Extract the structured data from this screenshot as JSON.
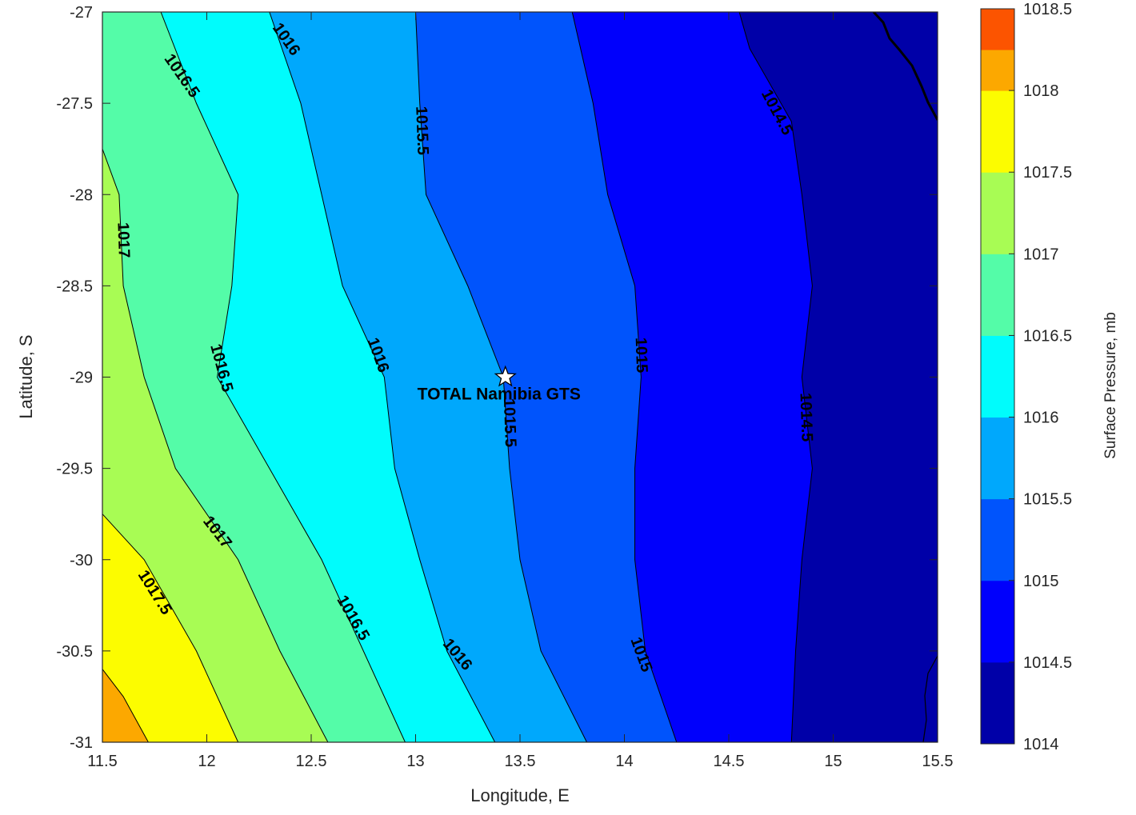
{
  "chart_data": {
    "type": "contour",
    "xlabel": "Longitude, E",
    "ylabel": "Latitude, S",
    "xlim": [
      11.5,
      15.5
    ],
    "ylim": [
      -31,
      -27
    ],
    "x_ticks": [
      "11.5",
      "12",
      "12.5",
      "13",
      "13.5",
      "14",
      "14.5",
      "15",
      "15.5"
    ],
    "y_ticks": [
      "-27",
      "-27.5",
      "-28",
      "-28.5",
      "-29",
      "-29.5",
      "-30",
      "-30.5",
      "-31"
    ],
    "colorbar": {
      "label": "Surface Pressure, mb",
      "range": [
        1014,
        1018.5
      ],
      "ticks": [
        "1014",
        "1014.5",
        "1015",
        "1015.5",
        "1016",
        "1016.5",
        "1017",
        "1017.5",
        "1018",
        "1018.5"
      ],
      "levels": [
        {
          "from": 1014.0,
          "to": 1014.25,
          "color": "#0000a8"
        },
        {
          "from": 1014.25,
          "to": 1014.5,
          "color": "#0000a8"
        },
        {
          "from": 1014.5,
          "to": 1014.75,
          "color": "#0000fc"
        },
        {
          "from": 1014.75,
          "to": 1015.0,
          "color": "#0000fc"
        },
        {
          "from": 1015.0,
          "to": 1015.25,
          "color": "#0054fc"
        },
        {
          "from": 1015.25,
          "to": 1015.5,
          "color": "#0054fc"
        },
        {
          "from": 1015.5,
          "to": 1015.75,
          "color": "#00a8fc"
        },
        {
          "from": 1015.75,
          "to": 1016.0,
          "color": "#00a8fc"
        },
        {
          "from": 1016.0,
          "to": 1016.25,
          "color": "#00fcfc"
        },
        {
          "from": 1016.25,
          "to": 1016.5,
          "color": "#00fcfc"
        },
        {
          "from": 1016.5,
          "to": 1016.75,
          "color": "#54fca8"
        },
        {
          "from": 1016.75,
          "to": 1017.0,
          "color": "#54fca8"
        },
        {
          "from": 1017.0,
          "to": 1017.25,
          "color": "#a8fc54"
        },
        {
          "from": 1017.25,
          "to": 1017.5,
          "color": "#a8fc54"
        },
        {
          "from": 1017.5,
          "to": 1017.75,
          "color": "#fcfc00"
        },
        {
          "from": 1017.75,
          "to": 1018.0,
          "color": "#fcfc00"
        },
        {
          "from": 1018.0,
          "to": 1018.25,
          "color": "#fca800"
        },
        {
          "from": 1018.25,
          "to": 1018.5,
          "color": "#fc5400"
        }
      ]
    },
    "contour_lines": [
      {
        "level": "1014.5",
        "points": [
          [
            14.55,
            -27
          ],
          [
            14.6,
            -27.2
          ],
          [
            14.7,
            -27.4
          ],
          [
            14.8,
            -27.6
          ],
          [
            14.85,
            -28
          ],
          [
            14.9,
            -28.5
          ],
          [
            14.85,
            -29
          ],
          [
            14.9,
            -29.5
          ],
          [
            14.85,
            -30
          ],
          [
            14.82,
            -30.5
          ],
          [
            14.8,
            -31
          ]
        ]
      },
      {
        "level": "1015",
        "points": [
          [
            13.75,
            -27
          ],
          [
            13.85,
            -27.5
          ],
          [
            13.92,
            -28
          ],
          [
            14.05,
            -28.5
          ],
          [
            14.08,
            -29
          ],
          [
            14.05,
            -29.5
          ],
          [
            14.05,
            -30
          ],
          [
            14.1,
            -30.5
          ],
          [
            14.25,
            -31
          ]
        ]
      },
      {
        "level": "1015.5",
        "points": [
          [
            13.0,
            -27
          ],
          [
            13.02,
            -27.5
          ],
          [
            13.05,
            -28
          ],
          [
            13.25,
            -28.5
          ],
          [
            13.42,
            -29
          ],
          [
            13.45,
            -29.5
          ],
          [
            13.5,
            -30
          ],
          [
            13.6,
            -30.5
          ],
          [
            13.82,
            -31
          ]
        ]
      },
      {
        "level": "1016",
        "points": [
          [
            12.3,
            -27
          ],
          [
            12.45,
            -27.5
          ],
          [
            12.55,
            -28
          ],
          [
            12.65,
            -28.5
          ],
          [
            12.85,
            -29
          ],
          [
            12.9,
            -29.5
          ],
          [
            13.02,
            -30
          ],
          [
            13.15,
            -30.5
          ],
          [
            13.38,
            -31
          ]
        ]
      },
      {
        "level": "1016.5",
        "points": [
          [
            11.78,
            -27
          ],
          [
            11.95,
            -27.5
          ],
          [
            12.15,
            -28
          ],
          [
            12.12,
            -28.5
          ],
          [
            12.05,
            -29
          ],
          [
            12.3,
            -29.5
          ],
          [
            12.55,
            -30
          ],
          [
            12.75,
            -30.5
          ],
          [
            12.95,
            -31
          ]
        ]
      },
      {
        "level": "1017",
        "points": [
          [
            11.5,
            -27.75
          ],
          [
            11.58,
            -28
          ],
          [
            11.6,
            -28.5
          ],
          [
            11.7,
            -29
          ],
          [
            11.85,
            -29.5
          ],
          [
            12.15,
            -30
          ],
          [
            12.35,
            -30.5
          ],
          [
            12.58,
            -31
          ]
        ]
      },
      {
        "level": "1017.5",
        "points": [
          [
            11.5,
            -29.75
          ],
          [
            11.7,
            -30
          ],
          [
            11.95,
            -30.5
          ],
          [
            12.15,
            -31
          ]
        ]
      },
      {
        "level": "1018",
        "points": [
          [
            11.5,
            -30.6
          ],
          [
            11.6,
            -30.75
          ],
          [
            11.72,
            -31
          ]
        ]
      }
    ],
    "contour_labels": [
      {
        "text": "1016.5",
        "x": 11.88,
        "y": -27.35,
        "angle": 55
      },
      {
        "text": "1016",
        "x": 12.38,
        "y": -27.15,
        "angle": 55
      },
      {
        "text": "1015.5",
        "x": 13.03,
        "y": -27.65,
        "angle": 88
      },
      {
        "text": "1014.5",
        "x": 14.73,
        "y": -27.55,
        "angle": 62
      },
      {
        "text": "1017",
        "x": 11.6,
        "y": -28.25,
        "angle": 88
      },
      {
        "text": "1016.5",
        "x": 12.07,
        "y": -28.95,
        "angle": 75
      },
      {
        "text": "1016",
        "x": 12.82,
        "y": -28.88,
        "angle": 70
      },
      {
        "text": "1015",
        "x": 14.08,
        "y": -28.88,
        "angle": 88
      },
      {
        "text": "1015.5",
        "x": 13.45,
        "y": -29.25,
        "angle": 88
      },
      {
        "text": "1014.5",
        "x": 14.87,
        "y": -29.22,
        "angle": 88
      },
      {
        "text": "1017",
        "x": 12.05,
        "y": -29.85,
        "angle": 52
      },
      {
        "text": "1017.5",
        "x": 11.75,
        "y": -30.18,
        "angle": 58
      },
      {
        "text": "1016.5",
        "x": 12.7,
        "y": -30.32,
        "angle": 60
      },
      {
        "text": "1016",
        "x": 13.2,
        "y": -30.52,
        "angle": 50
      },
      {
        "text": "1015",
        "x": 14.08,
        "y": -30.52,
        "angle": 70
      }
    ],
    "marker": {
      "label": "TOTAL Namibia GTS",
      "x": 13.43,
      "y": -29.0,
      "symbol": "star"
    }
  }
}
